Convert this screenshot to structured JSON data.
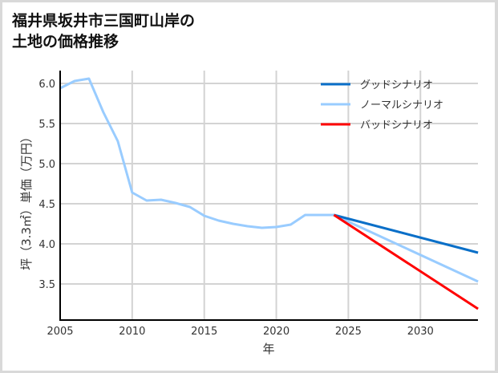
{
  "chart_data": {
    "type": "line",
    "title": "福井県坂井市三国町山岸の土地の価格推移",
    "title_lines": [
      "福井県坂井市三国町山岸の",
      "土地の価格推移"
    ],
    "xlabel": "年",
    "ylabel": "坪（3.3㎡）単価（万円）",
    "xlim": [
      2005,
      2034
    ],
    "ylim": [
      3.05,
      6.2
    ],
    "x_ticks": [
      2005,
      2010,
      2015,
      2020,
      2025,
      2030
    ],
    "y_ticks": [
      3.5,
      4.0,
      4.5,
      5.0,
      5.5,
      6.0
    ],
    "x_tick_labels": [
      "2005",
      "2010",
      "2015",
      "2020",
      "2025",
      "2030"
    ],
    "y_tick_labels": [
      "3.5",
      "4.0",
      "4.5",
      "5.0",
      "5.5",
      "6.0"
    ],
    "grid": true,
    "legend_position": "upper right",
    "series": [
      {
        "name": "グッドシナリオ",
        "color": "#0a6fc8",
        "x": [
          2024,
          2034
        ],
        "values": [
          4.36,
          3.89
        ]
      },
      {
        "name": "ノーマルシナリオ",
        "color": "#99ccff",
        "x": [
          2005,
          2006,
          2007,
          2008,
          2009,
          2010,
          2011,
          2012,
          2013,
          2014,
          2015,
          2016,
          2017,
          2018,
          2019,
          2020,
          2021,
          2022,
          2023,
          2024,
          2034
        ],
        "values": [
          5.94,
          6.03,
          6.06,
          5.64,
          5.28,
          4.64,
          4.54,
          4.55,
          4.51,
          4.46,
          4.35,
          4.29,
          4.25,
          4.22,
          4.2,
          4.21,
          4.24,
          4.36,
          4.36,
          4.36,
          3.53
        ]
      },
      {
        "name": "バッドシナリオ",
        "color": "#ff0000",
        "x": [
          2024,
          2034
        ],
        "values": [
          4.36,
          3.19
        ]
      }
    ]
  }
}
